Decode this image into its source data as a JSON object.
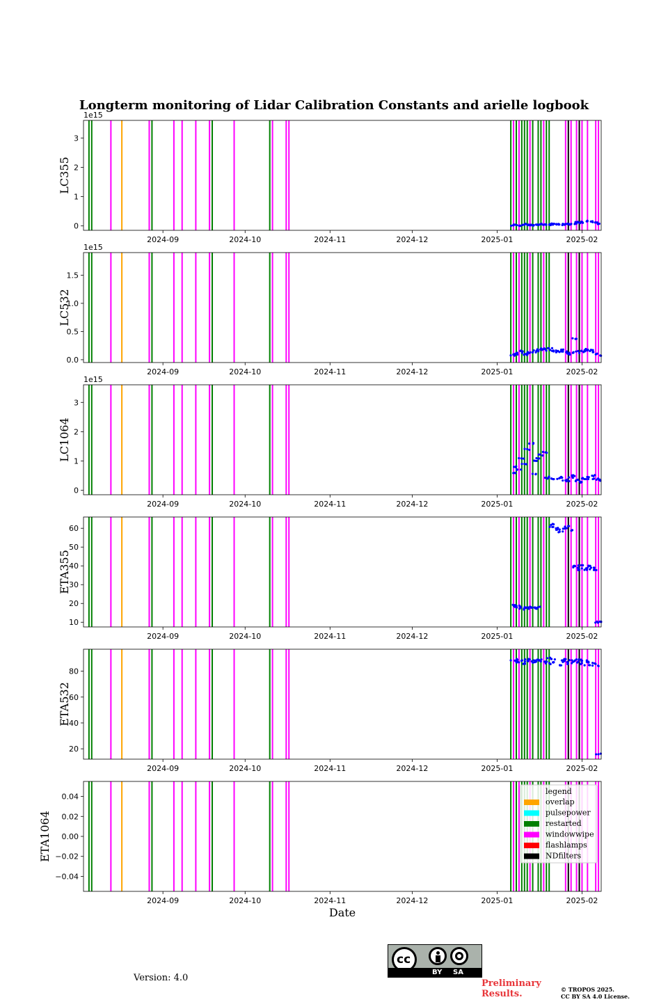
{
  "chart_data": {
    "type": "scatter",
    "title": "Longterm monitoring of Lidar Calibration Constants and arielle logbook",
    "xlabel": "Date",
    "xlim": [
      "2024-08-03",
      "2025-02-08"
    ],
    "xticks": [
      "2024-09",
      "2024-10",
      "2024-11",
      "2024-12",
      "2025-01",
      "2025-02"
    ],
    "point_color": "#0000ff",
    "events": {
      "restarted": [
        "2024-08-05",
        "2024-08-06",
        "2024-08-28",
        "2024-09-19",
        "2024-10-10",
        "2025-01-06",
        "2025-01-08",
        "2025-01-10",
        "2025-01-11",
        "2025-01-12",
        "2025-01-14",
        "2025-01-16",
        "2025-01-17",
        "2025-01-19",
        "2025-01-20"
      ],
      "windowwipe": [
        "2024-08-13",
        "2024-08-27",
        "2024-09-05",
        "2024-09-08",
        "2024-09-13",
        "2024-09-18",
        "2024-09-27",
        "2024-10-11",
        "2024-10-16",
        "2024-10-17",
        "2025-01-07",
        "2025-01-09",
        "2025-01-13",
        "2025-01-18",
        "2025-01-26",
        "2025-01-28",
        "2025-01-30",
        "2025-02-01",
        "2025-02-03",
        "2025-02-06",
        "2025-02-07"
      ],
      "overlap": [
        "2024-08-17"
      ],
      "flashlamps": [],
      "pulsepower": [],
      "NDfilters": [
        "2025-01-27",
        "2025-01-31"
      ]
    },
    "panels": [
      {
        "ylabel": "LC355",
        "offset": "1e15",
        "ylim": [
          -0.15,
          3.6
        ],
        "yticks": [
          0,
          1,
          2,
          3
        ],
        "series": [
          {
            "name": "LC355",
            "x_start": "2025-01-07",
            "x_end": "2025-02-08",
            "y": [
              0.02,
              0.03,
              0.02,
              0.03,
              0.04,
              0.05,
              0.03,
              0.02,
              0.04,
              0.05,
              0.06,
              0.05,
              0.04,
              0.05,
              0.06,
              0.05,
              0.05,
              0.06,
              0.05,
              0.06,
              0.07,
              0.08,
              0.1,
              0.12,
              0.1,
              0.14,
              0.16,
              0.15,
              0.12,
              0.1,
              0.08,
              0.06
            ]
          }
        ]
      },
      {
        "ylabel": "LC532",
        "offset": "1e15",
        "ylim": [
          -0.05,
          1.9
        ],
        "yticks": [
          "0.0",
          "0.5",
          "1.0",
          "1.5"
        ],
        "series": [
          {
            "name": "LC532",
            "x_start": "2025-01-07",
            "x_end": "2025-02-08",
            "y": [
              0.08,
              0.1,
              0.12,
              0.15,
              0.09,
              0.11,
              0.13,
              0.14,
              0.16,
              0.18,
              0.19,
              0.18,
              0.17,
              0.2,
              0.16,
              0.15,
              0.14,
              0.17,
              0.15,
              0.12,
              0.1,
              0.13,
              0.38,
              0.15,
              0.13,
              0.16,
              0.18,
              0.17,
              0.16,
              0.14,
              0.1,
              0.07
            ]
          }
        ]
      },
      {
        "ylabel": "LC1064",
        "offset": "1e15",
        "ylim": [
          -0.15,
          3.6
        ],
        "yticks": [
          0,
          1,
          2,
          3
        ],
        "series": [
          {
            "name": "LC1064",
            "x_start": "2025-01-07",
            "x_end": "2025-02-08",
            "y": [
              0.6,
              0.8,
              0.7,
              1.1,
              0.9,
              1.4,
              1.6,
              0.55,
              1.0,
              1.1,
              1.2,
              1.3,
              0.45,
              0.42,
              0.4,
              0.38,
              0.45,
              0.42,
              0.35,
              0.32,
              0.45,
              0.5,
              0.35,
              0.3,
              0.28,
              0.42,
              0.4,
              0.45,
              0.5,
              0.4,
              0.35,
              0.32
            ]
          }
        ]
      },
      {
        "ylabel": "ETA355",
        "offset": "",
        "ylim": [
          7.5,
          66
        ],
        "yticks": [
          10,
          20,
          30,
          40,
          50,
          60
        ],
        "series": [
          {
            "name": "ETA355",
            "x_start": "2025-01-07",
            "x_end": "2025-02-08",
            "y": [
              19,
              18.5,
              18,
              17,
              18,
              17.5,
              18,
              18,
              17.5,
              18,
              null,
              null,
              null,
              61,
              62,
              60,
              59,
              58,
              60,
              61,
              59,
              40,
              39,
              38,
              40,
              39,
              38,
              40,
              39,
              38,
              10,
              10
            ]
          }
        ]
      },
      {
        "ylabel": "ETA532",
        "offset": "",
        "ylim": [
          12,
          97
        ],
        "yticks": [
          20,
          40,
          60,
          80
        ],
        "series": [
          {
            "name": "ETA532",
            "x_start": "2025-01-07",
            "x_end": "2025-02-08",
            "y": [
              88,
              87,
              89,
              88,
              86,
              89,
              88,
              87,
              88,
              89,
              88,
              87,
              86,
              90,
              89,
              87,
              85,
              88,
              87,
              89,
              86,
              88,
              87,
              89,
              86,
              88,
              85,
              87,
              86,
              84,
              16,
              16
            ]
          }
        ]
      },
      {
        "ylabel": "ETA1064",
        "offset": "",
        "ylim": [
          -0.055,
          0.055
        ],
        "yticks": [
          "0.04",
          "0.02",
          "0.00",
          "−0.02",
          "−0.04"
        ],
        "series": []
      }
    ],
    "legend": {
      "title": "legend",
      "placement": "upper right of bottom panel",
      "entries": [
        {
          "label": "overlap",
          "color": "#ffa500"
        },
        {
          "label": "pulsepower",
          "color": "#00ffff"
        },
        {
          "label": "restarted",
          "color": "#008000"
        },
        {
          "label": "windowwipe",
          "color": "#ff00ff"
        },
        {
          "label": "flashlamps",
          "color": "#ff0000"
        },
        {
          "label": "NDfilters",
          "color": "#000000"
        }
      ]
    }
  },
  "footer": {
    "version": "Version: 4.0",
    "cc_by": "BY",
    "cc_sa": "SA",
    "cc_logo": "cc",
    "preliminary_1": "Preliminary",
    "preliminary_2": "Results.",
    "copyright_1": "© TROPOS 2025.",
    "copyright_2": "CC BY SA 4.0 License."
  }
}
